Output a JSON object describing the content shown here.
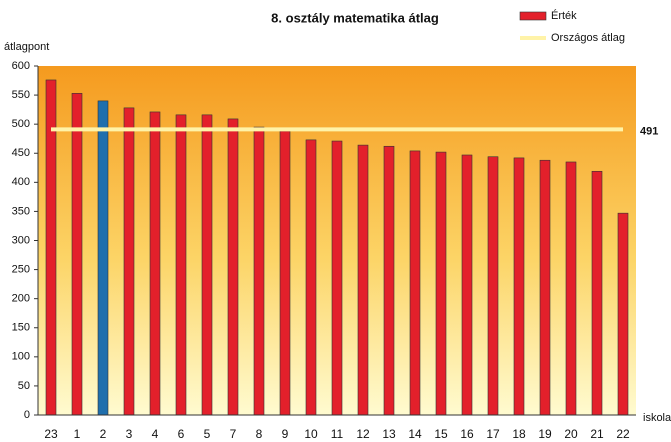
{
  "chart_data": {
    "type": "bar",
    "title": "8. osztály matematika átlag",
    "y_label": "átlagpont",
    "x_label": "iskola",
    "categories": [
      "23",
      "1",
      "2",
      "3",
      "4",
      "6",
      "5",
      "7",
      "8",
      "9",
      "10",
      "11",
      "12",
      "13",
      "14",
      "15",
      "16",
      "17",
      "18",
      "19",
      "20",
      "21",
      "22"
    ],
    "series": [
      {
        "name": "Érték",
        "color": "#e3202b",
        "colors": [
          "#e3202b",
          "#e3202b",
          "#1f6fad",
          "#e3202b",
          "#e3202b",
          "#e3202b",
          "#e3202b",
          "#e3202b",
          "#e3202b",
          "#e3202b",
          "#e3202b",
          "#e3202b",
          "#e3202b",
          "#e3202b",
          "#e3202b",
          "#e3202b",
          "#e3202b",
          "#e3202b",
          "#e3202b",
          "#e3202b",
          "#e3202b",
          "#e3202b",
          "#e3202b"
        ],
        "values": [
          576,
          553,
          540,
          528,
          521,
          516,
          516,
          509,
          495,
          488,
          473,
          471,
          464,
          462,
          454,
          452,
          447,
          444,
          442,
          438,
          435,
          419,
          347
        ]
      }
    ],
    "reference": {
      "name": "Országos átlag",
      "value": 491,
      "color": "#fff3a8"
    },
    "ylim": [
      0,
      600
    ],
    "yticks": [
      0,
      50,
      100,
      150,
      200,
      250,
      300,
      350,
      400,
      450,
      500,
      550,
      600
    ],
    "legend": "top-right"
  }
}
